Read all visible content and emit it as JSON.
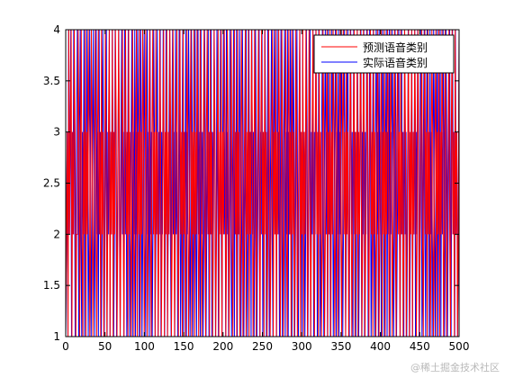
{
  "chart_data": {
    "type": "line",
    "title": "",
    "xlabel": "",
    "ylabel": "",
    "xlim": [
      0,
      500
    ],
    "ylim": [
      1,
      4
    ],
    "x_ticks": [
      "0",
      "50",
      "100",
      "150",
      "200",
      "250",
      "300",
      "350",
      "400",
      "450",
      "500"
    ],
    "y_ticks": [
      "1",
      "1.5",
      "2",
      "2.5",
      "3",
      "3.5",
      "4"
    ],
    "grid": false,
    "legend_position": "top-right",
    "series": [
      {
        "name": "预测语音类别",
        "color": "#ff0000",
        "values": [
          1,
          2,
          3,
          1,
          4,
          2,
          3,
          4,
          1,
          3,
          2,
          4,
          3,
          1,
          2,
          2,
          4,
          3,
          1,
          3,
          4,
          2,
          1,
          3,
          2,
          4,
          1,
          3,
          2,
          4,
          3,
          1,
          2,
          4,
          3,
          1,
          2,
          3,
          4,
          2,
          1,
          3,
          4,
          2,
          3,
          1,
          4,
          2,
          3,
          1,
          2,
          4,
          3,
          1,
          2,
          3,
          4,
          1,
          3,
          2,
          4,
          1,
          3,
          2,
          4,
          3,
          1,
          2,
          4,
          3,
          1,
          2,
          3,
          4,
          2,
          1,
          3,
          4,
          2,
          3,
          1,
          4,
          2,
          3,
          1,
          2,
          4,
          3,
          1,
          2,
          3,
          4,
          1,
          3,
          2,
          4,
          1,
          3,
          2,
          4,
          3,
          1,
          2,
          4,
          3,
          1,
          2,
          3,
          4,
          2,
          1,
          3,
          4,
          2,
          3,
          1,
          4,
          2,
          3,
          1,
          2,
          4,
          3,
          1,
          2,
          3,
          4,
          1,
          3,
          2,
          4,
          1,
          3,
          2,
          4,
          3,
          1,
          2,
          4,
          3,
          1,
          2,
          3,
          4,
          2,
          1,
          3,
          4,
          2,
          3,
          1,
          4,
          2,
          3,
          1,
          2,
          4,
          3,
          1,
          2,
          3,
          4,
          1,
          3,
          2,
          4,
          1,
          3,
          2,
          4,
          3,
          1,
          2,
          4,
          3,
          1,
          2,
          3,
          4,
          2,
          1,
          3,
          4,
          2,
          3,
          1,
          4,
          2,
          3,
          1,
          2,
          4,
          3,
          1,
          2,
          3,
          4,
          1,
          3,
          2,
          4,
          1,
          3,
          2,
          4,
          3,
          1,
          2,
          4,
          3,
          1,
          2,
          3,
          4,
          2,
          1,
          3,
          4,
          2,
          3,
          1,
          4,
          2,
          3,
          1,
          2,
          4,
          3,
          1,
          2,
          3,
          4,
          1,
          3,
          2,
          4,
          1,
          3,
          2,
          4,
          3,
          1,
          2,
          4,
          3,
          1,
          2,
          3,
          4,
          2,
          1,
          3,
          4,
          2,
          3,
          1,
          4,
          2,
          3,
          1,
          2,
          4,
          3,
          1,
          2,
          3,
          4,
          1,
          3,
          2,
          4,
          1,
          3,
          2,
          4,
          3,
          1,
          2,
          4,
          3,
          1,
          2,
          3,
          4,
          2,
          1,
          3,
          4,
          2,
          3,
          1,
          4,
          2,
          3,
          1,
          2,
          4,
          3,
          1,
          2,
          3,
          4,
          1,
          3,
          2,
          4,
          1,
          3,
          2,
          4,
          3,
          1,
          2,
          4,
          3,
          1,
          2,
          3,
          4,
          2,
          1,
          3,
          4,
          2,
          3,
          1,
          4,
          2,
          3,
          1,
          2,
          4,
          3,
          1,
          2,
          3,
          4,
          1,
          3,
          2,
          4,
          1,
          3,
          2,
          4,
          3,
          1,
          2,
          4,
          3,
          1,
          2,
          3,
          4,
          2,
          1,
          3,
          4,
          2,
          3,
          1,
          4,
          2,
          3,
          1,
          2,
          4,
          3,
          1,
          2,
          3,
          4,
          1,
          3,
          2,
          4,
          1,
          3,
          2,
          4,
          3,
          1,
          2,
          4,
          3,
          1,
          2,
          3,
          4,
          2,
          1,
          3,
          4,
          2,
          3,
          1,
          4,
          2,
          3,
          1,
          2,
          4,
          3,
          1,
          2,
          3,
          4,
          1,
          3,
          2,
          4,
          1,
          3,
          2,
          4,
          3,
          1,
          2,
          4,
          3,
          1,
          2,
          3,
          4,
          2,
          1,
          3,
          4,
          2,
          3,
          1,
          4,
          2,
          3,
          1,
          2,
          4,
          3,
          1,
          2,
          3,
          4,
          1,
          3,
          2,
          4,
          1,
          3,
          2,
          4,
          3,
          1,
          2,
          4,
          3,
          1,
          2,
          3,
          4,
          2,
          1,
          3,
          4,
          2,
          3,
          1,
          4,
          2,
          3,
          1,
          2,
          4,
          3,
          1,
          2,
          3,
          4,
          1,
          3,
          2,
          4,
          1,
          3,
          2,
          4,
          3,
          1,
          2,
          4,
          3,
          1,
          2,
          3,
          4,
          2,
          1,
          3,
          4,
          2,
          3,
          1,
          4,
          2,
          3,
          1,
          2,
          4
        ]
      },
      {
        "name": "实际语音类别",
        "color": "#0000ff",
        "values": [
          1,
          2,
          3,
          1,
          4,
          2,
          3,
          4,
          1,
          3,
          2,
          4,
          3,
          1,
          2,
          3,
          4,
          3,
          1,
          3,
          4,
          2,
          1,
          3,
          2,
          4,
          1,
          3,
          2,
          4,
          3,
          1,
          2,
          4,
          3,
          1,
          2,
          3,
          4,
          2,
          1,
          3,
          4,
          2,
          3,
          1,
          4,
          2,
          3,
          1,
          2,
          4,
          3,
          1,
          2,
          3,
          4,
          1,
          3,
          2,
          4,
          1,
          3,
          2,
          4,
          3,
          1,
          2,
          4,
          3,
          1,
          2,
          3,
          4,
          2,
          1,
          3,
          4,
          2,
          3,
          1,
          4,
          2,
          3,
          1,
          2,
          4,
          3,
          1,
          2,
          3,
          4,
          1,
          3,
          2,
          4,
          1,
          3,
          2,
          4,
          3,
          1,
          2,
          4,
          3,
          1,
          2,
          3,
          4,
          2,
          1,
          3,
          4,
          2,
          3,
          1,
          4,
          2,
          3,
          1,
          2,
          4,
          3,
          1,
          2,
          3,
          4,
          1,
          3,
          2,
          4,
          1,
          3,
          2,
          4,
          3,
          1,
          2,
          4,
          3,
          1,
          2,
          3,
          4,
          2,
          1,
          3,
          4,
          2,
          3,
          1,
          4,
          2,
          3,
          1,
          2,
          4,
          3,
          1,
          2,
          3,
          4,
          1,
          3,
          2,
          4,
          1,
          3,
          2,
          4,
          3,
          1,
          2,
          4,
          3,
          1,
          2,
          3,
          4,
          2,
          1,
          3,
          4,
          2,
          3,
          1,
          4,
          2,
          3,
          1,
          2,
          4,
          3,
          1,
          2,
          3,
          4,
          1,
          3,
          2,
          4,
          1,
          3,
          2,
          4,
          3,
          1,
          2,
          4,
          3,
          1,
          2,
          3,
          4,
          2,
          1,
          3,
          4,
          2,
          3,
          1,
          4,
          2,
          3,
          1,
          2,
          4,
          3,
          1,
          2,
          3,
          4,
          1,
          3,
          2,
          4,
          1,
          3,
          2,
          4,
          3,
          1,
          2,
          4,
          3,
          1,
          2,
          3,
          4,
          2,
          1,
          3,
          4,
          2,
          3,
          1,
          4,
          2,
          3,
          1,
          2,
          4,
          3,
          1,
          2,
          3,
          4,
          1,
          3,
          2,
          4,
          1,
          3,
          2,
          4,
          3,
          1,
          2,
          4,
          3,
          1,
          2,
          3,
          4,
          2,
          1,
          3,
          4,
          2,
          3,
          1,
          4,
          2,
          3,
          1,
          2,
          4,
          3,
          1,
          2,
          3,
          4,
          1,
          3,
          2,
          4,
          1,
          3,
          2,
          4,
          3,
          1,
          2,
          4,
          3,
          1,
          2,
          3,
          4,
          2,
          1,
          3,
          4,
          2,
          3,
          1,
          4,
          2,
          3,
          1,
          2,
          4,
          3,
          1,
          2,
          3,
          4,
          1,
          3,
          2,
          4,
          1,
          3,
          2,
          4,
          3,
          1,
          2,
          4,
          3,
          1,
          2,
          3,
          4,
          2,
          1,
          3,
          4,
          2,
          3,
          1,
          4,
          2,
          3,
          1,
          2,
          4,
          3,
          1,
          2,
          3,
          4,
          1,
          3,
          2,
          4,
          1,
          3,
          2,
          4,
          3,
          1,
          2,
          4,
          3,
          1,
          2,
          3,
          4,
          2,
          1,
          3,
          4,
          2,
          3,
          1,
          4,
          2,
          3,
          1,
          2,
          4,
          3,
          1,
          2,
          3,
          4,
          1,
          3,
          2,
          4,
          1,
          3,
          2,
          4,
          3,
          1,
          2,
          4,
          3,
          1,
          2,
          3,
          4,
          2,
          1,
          3,
          4,
          2,
          3,
          1,
          4,
          2,
          3,
          1,
          2,
          4,
          3,
          1,
          2,
          3,
          4,
          1,
          3,
          2,
          4,
          1,
          3,
          2,
          4,
          3,
          1,
          2,
          4,
          3,
          1,
          2,
          3,
          4,
          2,
          1,
          3,
          4,
          2,
          3,
          1,
          4,
          2,
          3,
          1,
          2,
          4,
          3,
          1,
          2,
          3,
          4,
          1,
          3,
          2,
          4,
          1,
          3,
          2,
          4,
          3,
          1,
          2,
          4,
          3,
          1,
          2,
          3,
          4,
          2,
          1,
          3,
          4,
          2,
          3,
          1,
          4,
          2,
          3,
          1,
          2,
          4,
          3,
          1,
          2,
          3,
          4,
          1,
          3,
          2,
          4,
          1,
          3,
          2,
          4,
          3,
          1,
          2,
          4,
          3,
          1,
          2,
          3,
          4,
          2,
          1,
          3,
          4,
          2,
          3,
          1,
          4,
          2,
          3,
          1,
          2,
          4
        ]
      }
    ]
  },
  "watermark": "@稀土掘金技术社区"
}
